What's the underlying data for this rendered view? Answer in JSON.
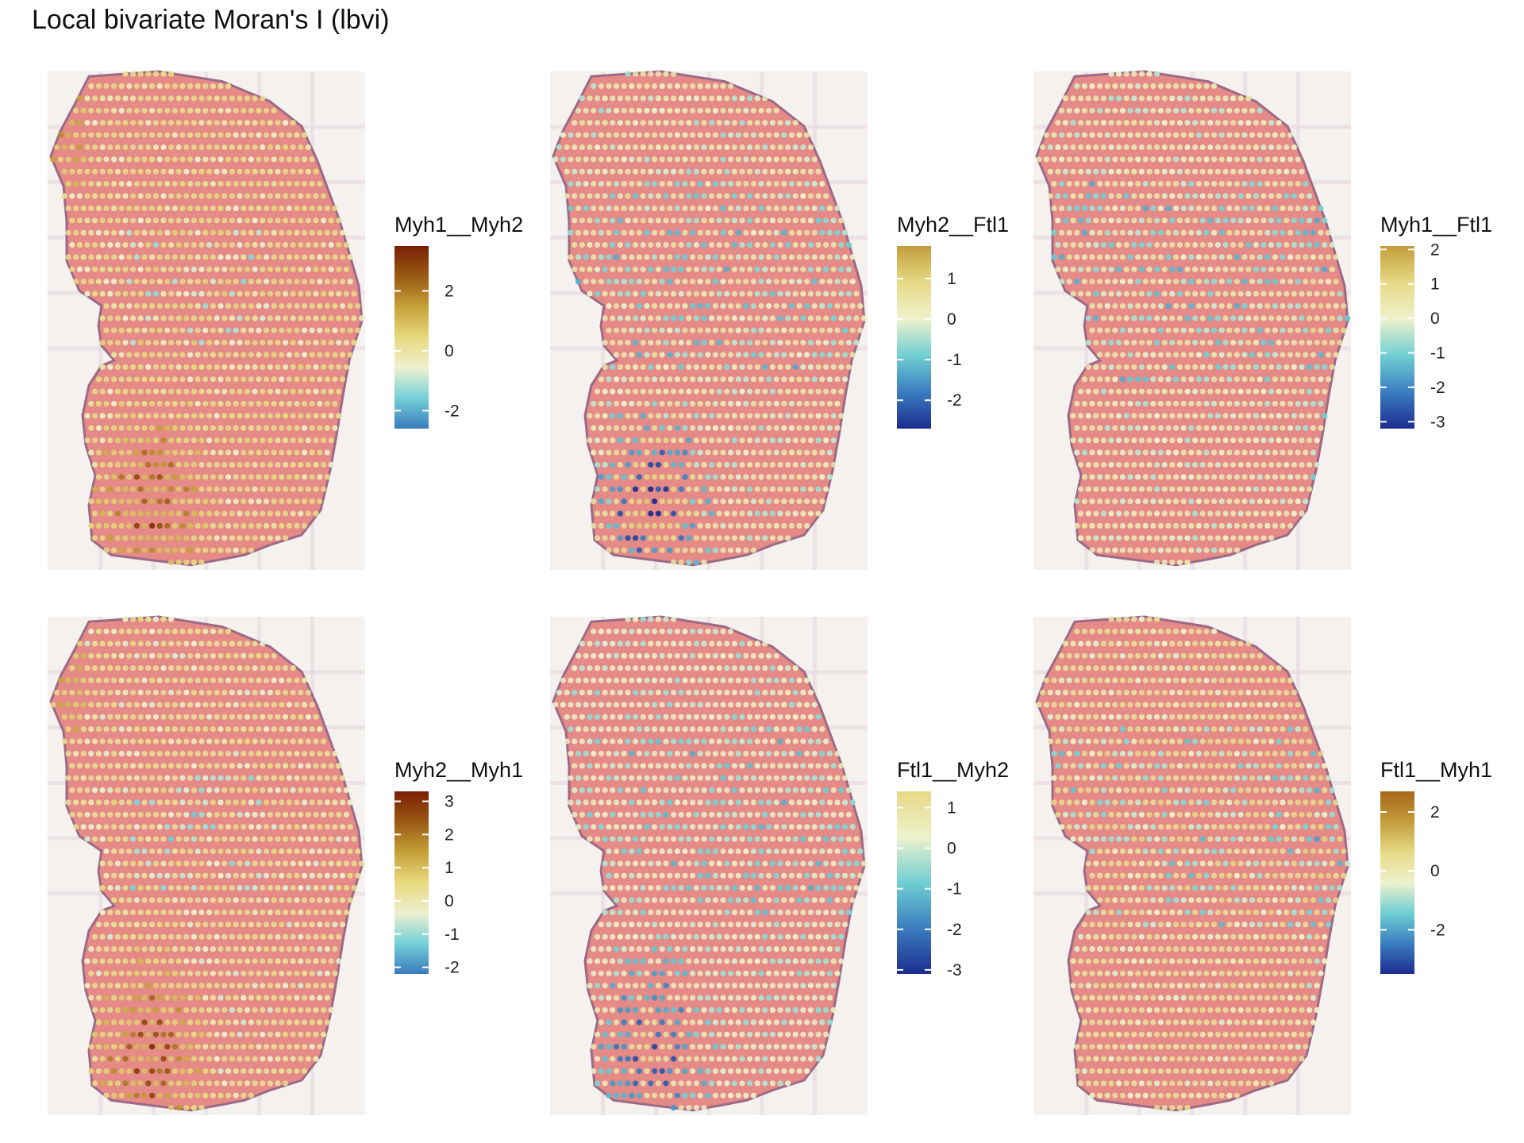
{
  "title": "Local bivariate Moran's I (lbvi)",
  "colors": {
    "tissue_fill": "#e58a87",
    "tissue_edge": "#9c6a86",
    "image_bg": "#f4f1ef",
    "grid_line": "#e8d9df",
    "ramp_stops": [
      "#1c2f8f",
      "#3f7fc0",
      "#70cfd3",
      "#e8f1d8",
      "#e8dc88",
      "#c9a43c",
      "#9e5a18",
      "#7a1c08"
    ]
  },
  "chart_data": [
    {
      "type": "scatter",
      "panel": 1,
      "legend_title": "Myh1__Myh2",
      "ticks": [
        2,
        0,
        -2
      ],
      "range": [
        -2.6,
        3.5
      ],
      "ramp": [
        "#3a7bbd",
        "#74d0d8",
        "#eef0cf",
        "#e8d97f",
        "#c6a038",
        "#9a5a14",
        "#7a1f04"
      ],
      "pattern": "hot-bottom"
    },
    {
      "type": "scatter",
      "panel": 2,
      "legend_title": "Myh2__Ftl1",
      "ticks": [
        1,
        0,
        -1,
        -2
      ],
      "range": [
        -2.7,
        1.8
      ],
      "ramp": [
        "#1c2d8f",
        "#3b7dc0",
        "#70cfd3",
        "#eef2cc",
        "#e6d986",
        "#c39d3a"
      ],
      "pattern": "cold-bottom"
    },
    {
      "type": "scatter",
      "panel": 3,
      "legend_title": "Myh1__Ftl1",
      "ticks": [
        2,
        1,
        0,
        -1,
        -2,
        -3
      ],
      "range": [
        -3.2,
        2.1
      ],
      "ramp": [
        "#1c2d8f",
        "#3b7dc0",
        "#70cfd3",
        "#eef2cc",
        "#e6d986",
        "#c39d3a"
      ],
      "pattern": "cold-center"
    },
    {
      "type": "scatter",
      "panel": 4,
      "legend_title": "Myh2__Myh1",
      "ticks": [
        3,
        2,
        1,
        0,
        -1,
        -2
      ],
      "range": [
        -2.2,
        3.3
      ],
      "ramp": [
        "#3a7bbd",
        "#74d0d8",
        "#eef0cf",
        "#e8d97f",
        "#c6a038",
        "#9a5a14",
        "#7a1f04"
      ],
      "pattern": "hot-bottom"
    },
    {
      "type": "scatter",
      "panel": 5,
      "legend_title": "Ftl1__Myh2",
      "ticks": [
        1,
        0,
        -1,
        -2,
        -3
      ],
      "range": [
        -3.1,
        1.4
      ],
      "ramp": [
        "#1c2d8f",
        "#3b7dc0",
        "#70cfd3",
        "#eef2cc",
        "#e6d986"
      ],
      "pattern": "cold-bottom"
    },
    {
      "type": "scatter",
      "panel": 6,
      "legend_title": "Ftl1__Myh1",
      "ticks": [
        2,
        0,
        -2
      ],
      "range": [
        -3.5,
        2.7
      ],
      "ramp": [
        "#1c2d8f",
        "#3b7dc0",
        "#70cfd3",
        "#eef2cc",
        "#e6d986",
        "#c39d3a",
        "#a8671c"
      ],
      "pattern": "cold-center"
    }
  ]
}
